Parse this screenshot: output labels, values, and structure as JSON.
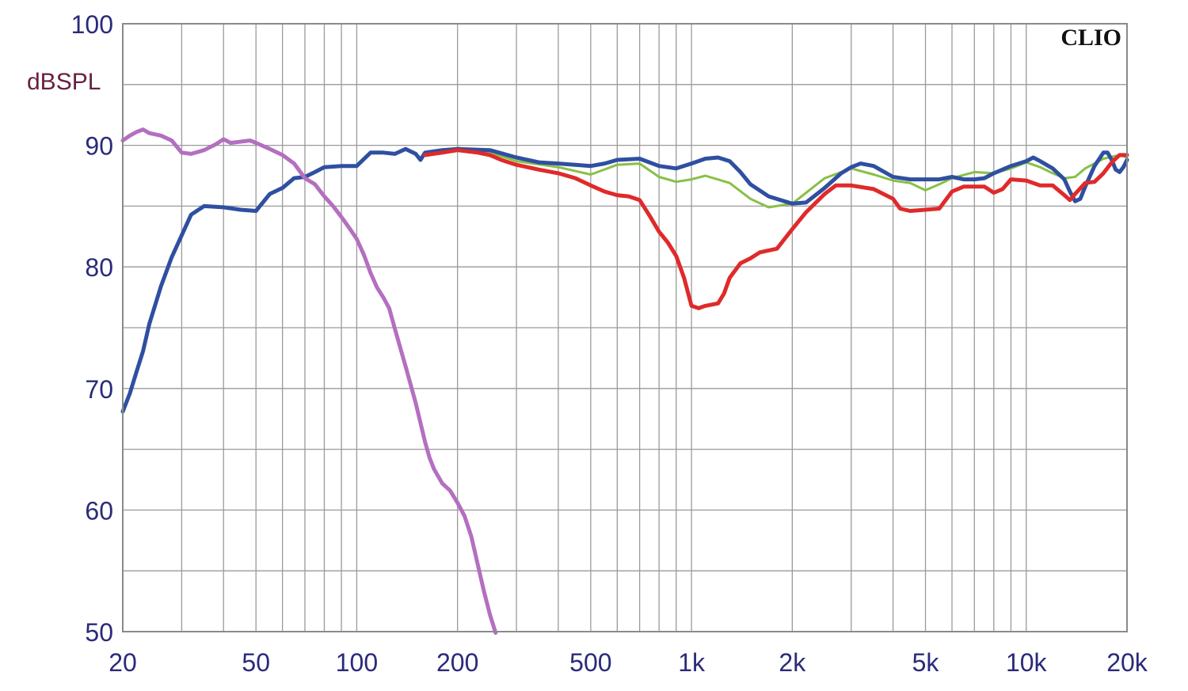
{
  "chart_data": {
    "type": "line",
    "title": "",
    "watermark": "CLIO",
    "xlabel": "",
    "ylabel": "dBSPL",
    "x_scale": "log",
    "xlim": [
      20,
      20000
    ],
    "ylim": [
      50,
      100
    ],
    "grid": true,
    "x_ticks": [
      {
        "value": 20,
        "label": "20"
      },
      {
        "value": 50,
        "label": "50"
      },
      {
        "value": 100,
        "label": "100"
      },
      {
        "value": 200,
        "label": "200"
      },
      {
        "value": 500,
        "label": "500"
      },
      {
        "value": 1000,
        "label": "1k"
      },
      {
        "value": 2000,
        "label": "2k"
      },
      {
        "value": 5000,
        "label": "5k"
      },
      {
        "value": 10000,
        "label": "10k"
      },
      {
        "value": 20000,
        "label": "20k"
      }
    ],
    "y_ticks": [
      {
        "value": 100,
        "label": "100"
      },
      {
        "value": 90,
        "label": "90"
      },
      {
        "value": 80,
        "label": "80"
      },
      {
        "value": 70,
        "label": "70"
      },
      {
        "value": 60,
        "label": "60"
      },
      {
        "value": 50,
        "label": "50"
      }
    ],
    "series": [
      {
        "color": "#88c046",
        "stroke": 3,
        "points": [
          [
            200,
            89.8
          ],
          [
            250,
            89.4
          ],
          [
            300,
            88.7
          ],
          [
            400,
            88.2
          ],
          [
            500,
            87.6
          ],
          [
            600,
            88.4
          ],
          [
            700,
            88.5
          ],
          [
            800,
            87.4
          ],
          [
            900,
            87.0
          ],
          [
            1000,
            87.2
          ],
          [
            1100,
            87.5
          ],
          [
            1300,
            86.9
          ],
          [
            1500,
            85.6
          ],
          [
            1700,
            84.9
          ],
          [
            2000,
            85.2
          ],
          [
            2500,
            87.3
          ],
          [
            3000,
            88.1
          ],
          [
            3500,
            87.6
          ],
          [
            4000,
            87.1
          ],
          [
            4500,
            86.9
          ],
          [
            5000,
            86.3
          ],
          [
            5500,
            86.8
          ],
          [
            6000,
            87.3
          ],
          [
            7000,
            87.8
          ],
          [
            8000,
            87.7
          ],
          [
            9000,
            88.1
          ],
          [
            10000,
            88.6
          ],
          [
            11000,
            88.2
          ],
          [
            12000,
            87.7
          ],
          [
            13000,
            87.3
          ],
          [
            14000,
            87.4
          ],
          [
            15000,
            88.1
          ],
          [
            17000,
            88.9
          ],
          [
            19000,
            89.2
          ],
          [
            20000,
            89.0
          ]
        ]
      },
      {
        "color": "#2f4fa0",
        "stroke": 5,
        "points": [
          [
            20,
            68.1
          ],
          [
            21,
            69.6
          ],
          [
            22,
            71.4
          ],
          [
            23,
            73.1
          ],
          [
            24,
            75.3
          ],
          [
            26,
            78.4
          ],
          [
            28,
            80.8
          ],
          [
            30,
            82.6
          ],
          [
            32,
            84.3
          ],
          [
            35,
            85.0
          ],
          [
            40,
            84.9
          ],
          [
            45,
            84.7
          ],
          [
            50,
            84.6
          ],
          [
            55,
            86.0
          ],
          [
            60,
            86.5
          ],
          [
            65,
            87.3
          ],
          [
            70,
            87.4
          ],
          [
            75,
            87.8
          ],
          [
            80,
            88.2
          ],
          [
            90,
            88.3
          ],
          [
            100,
            88.3
          ],
          [
            110,
            89.4
          ],
          [
            120,
            89.4
          ],
          [
            130,
            89.3
          ],
          [
            140,
            89.7
          ],
          [
            150,
            89.3
          ],
          [
            155,
            88.8
          ],
          [
            160,
            89.4
          ],
          [
            180,
            89.6
          ],
          [
            200,
            89.7
          ],
          [
            250,
            89.6
          ],
          [
            300,
            89.0
          ],
          [
            350,
            88.6
          ],
          [
            400,
            88.5
          ],
          [
            450,
            88.4
          ],
          [
            500,
            88.3
          ],
          [
            550,
            88.5
          ],
          [
            600,
            88.8
          ],
          [
            700,
            88.9
          ],
          [
            800,
            88.3
          ],
          [
            900,
            88.1
          ],
          [
            1000,
            88.5
          ],
          [
            1100,
            88.9
          ],
          [
            1200,
            89.0
          ],
          [
            1300,
            88.7
          ],
          [
            1400,
            87.8
          ],
          [
            1500,
            86.8
          ],
          [
            1700,
            85.8
          ],
          [
            2000,
            85.2
          ],
          [
            2200,
            85.3
          ],
          [
            2500,
            86.5
          ],
          [
            2800,
            87.7
          ],
          [
            3000,
            88.2
          ],
          [
            3200,
            88.5
          ],
          [
            3500,
            88.3
          ],
          [
            4000,
            87.4
          ],
          [
            4500,
            87.2
          ],
          [
            5000,
            87.2
          ],
          [
            5500,
            87.2
          ],
          [
            6000,
            87.4
          ],
          [
            6500,
            87.2
          ],
          [
            7000,
            87.2
          ],
          [
            7500,
            87.3
          ],
          [
            8000,
            87.7
          ],
          [
            9000,
            88.3
          ],
          [
            10000,
            88.7
          ],
          [
            10500,
            89.0
          ],
          [
            11000,
            88.7
          ],
          [
            12000,
            88.1
          ],
          [
            13000,
            87.2
          ],
          [
            13500,
            86.2
          ],
          [
            14000,
            85.4
          ],
          [
            14500,
            85.6
          ],
          [
            15000,
            86.6
          ],
          [
            16000,
            88.3
          ],
          [
            17000,
            89.4
          ],
          [
            17500,
            89.4
          ],
          [
            18000,
            88.8
          ],
          [
            18500,
            88.0
          ],
          [
            19000,
            87.8
          ],
          [
            19500,
            88.2
          ],
          [
            20000,
            88.8
          ]
        ]
      },
      {
        "color": "#e02a2a",
        "stroke": 5,
        "points": [
          [
            160,
            89.2
          ],
          [
            180,
            89.4
          ],
          [
            200,
            89.6
          ],
          [
            230,
            89.4
          ],
          [
            250,
            89.2
          ],
          [
            270,
            88.8
          ],
          [
            300,
            88.4
          ],
          [
            350,
            88.0
          ],
          [
            400,
            87.7
          ],
          [
            450,
            87.3
          ],
          [
            500,
            86.7
          ],
          [
            550,
            86.2
          ],
          [
            600,
            85.9
          ],
          [
            650,
            85.8
          ],
          [
            700,
            85.5
          ],
          [
            750,
            84.2
          ],
          [
            800,
            82.9
          ],
          [
            850,
            82.0
          ],
          [
            900,
            80.9
          ],
          [
            950,
            79.1
          ],
          [
            1000,
            76.8
          ],
          [
            1050,
            76.6
          ],
          [
            1100,
            76.8
          ],
          [
            1200,
            77.0
          ],
          [
            1250,
            77.8
          ],
          [
            1300,
            79.1
          ],
          [
            1400,
            80.3
          ],
          [
            1500,
            80.7
          ],
          [
            1600,
            81.2
          ],
          [
            1800,
            81.5
          ],
          [
            2000,
            83.1
          ],
          [
            2200,
            84.5
          ],
          [
            2500,
            86.0
          ],
          [
            2700,
            86.7
          ],
          [
            3000,
            86.7
          ],
          [
            3500,
            86.4
          ],
          [
            4000,
            85.6
          ],
          [
            4200,
            84.8
          ],
          [
            4500,
            84.6
          ],
          [
            5000,
            84.7
          ],
          [
            5500,
            84.8
          ],
          [
            6000,
            86.2
          ],
          [
            6500,
            86.6
          ],
          [
            7000,
            86.6
          ],
          [
            7500,
            86.6
          ],
          [
            8000,
            86.1
          ],
          [
            8500,
            86.4
          ],
          [
            9000,
            87.2
          ],
          [
            10000,
            87.1
          ],
          [
            11000,
            86.7
          ],
          [
            12000,
            86.7
          ],
          [
            13000,
            85.9
          ],
          [
            13500,
            85.5
          ],
          [
            14000,
            86.0
          ],
          [
            15000,
            86.9
          ],
          [
            16000,
            87.0
          ],
          [
            17000,
            87.7
          ],
          [
            18000,
            88.6
          ],
          [
            19000,
            89.2
          ],
          [
            20000,
            89.2
          ]
        ]
      },
      {
        "color": "#b46fc0",
        "stroke": 5,
        "points": [
          [
            20,
            90.4
          ],
          [
            21,
            90.8
          ],
          [
            22,
            91.1
          ],
          [
            23,
            91.3
          ],
          [
            24,
            91.0
          ],
          [
            26,
            90.8
          ],
          [
            28,
            90.4
          ],
          [
            30,
            89.4
          ],
          [
            32,
            89.3
          ],
          [
            35,
            89.6
          ],
          [
            38,
            90.1
          ],
          [
            40,
            90.5
          ],
          [
            42,
            90.2
          ],
          [
            45,
            90.3
          ],
          [
            48,
            90.4
          ],
          [
            50,
            90.2
          ],
          [
            55,
            89.7
          ],
          [
            60,
            89.2
          ],
          [
            65,
            88.5
          ],
          [
            70,
            87.3
          ],
          [
            75,
            86.8
          ],
          [
            80,
            85.8
          ],
          [
            85,
            85.0
          ],
          [
            90,
            84.1
          ],
          [
            95,
            83.2
          ],
          [
            100,
            82.3
          ],
          [
            105,
            81.0
          ],
          [
            110,
            79.5
          ],
          [
            115,
            78.3
          ],
          [
            120,
            77.5
          ],
          [
            125,
            76.6
          ],
          [
            130,
            74.9
          ],
          [
            140,
            71.8
          ],
          [
            150,
            68.8
          ],
          [
            160,
            65.6
          ],
          [
            165,
            64.3
          ],
          [
            170,
            63.4
          ],
          [
            180,
            62.2
          ],
          [
            190,
            61.6
          ],
          [
            200,
            60.6
          ],
          [
            210,
            59.5
          ],
          [
            220,
            57.8
          ],
          [
            230,
            55.5
          ],
          [
            240,
            53.3
          ],
          [
            250,
            51.4
          ],
          [
            260,
            49.9
          ]
        ]
      }
    ]
  }
}
